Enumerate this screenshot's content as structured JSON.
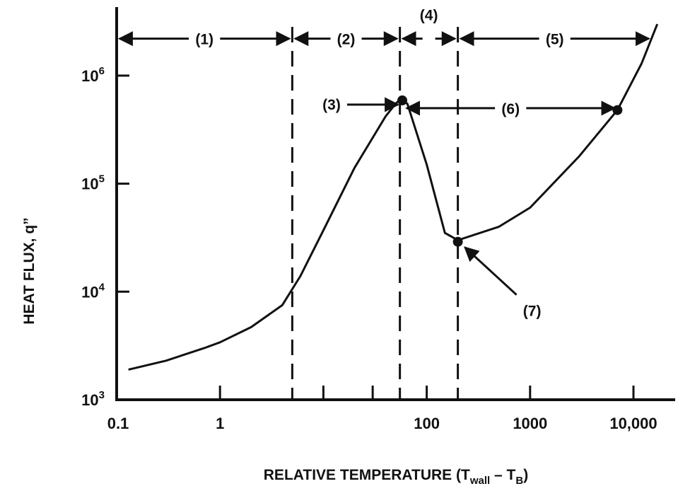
{
  "chart_data": {
    "type": "line",
    "title": "",
    "xlabel": "RELATIVE TEMPERATURE (T",
    "xlabel_sub1": "wall",
    "xlabel_mid": " – T",
    "xlabel_sub2": "B",
    "xlabel_end": ")",
    "ylabel": "HEAT FLUX, q”",
    "xscale": "log",
    "yscale": "log",
    "xlim": [
      0.1,
      20000
    ],
    "ylim": [
      1000,
      4000000
    ],
    "x_tick_labels": [
      {
        "value": 0.1,
        "label": "0.1"
      },
      {
        "value": 1,
        "label": "1"
      },
      {
        "value": 100,
        "label": "100"
      },
      {
        "value": 1000,
        "label": "1000"
      },
      {
        "value": 10000,
        "label": "10,000"
      }
    ],
    "x_minor_ticks": [
      10,
      30
    ],
    "y_tick_labels": [
      {
        "value": 1000,
        "base": "10",
        "exp": "3"
      },
      {
        "value": 10000,
        "base": "10",
        "exp": "4"
      },
      {
        "value": 100000,
        "base": "10",
        "exp": "5"
      },
      {
        "value": 1000000,
        "base": "10",
        "exp": "6"
      }
    ],
    "series": [
      {
        "name": "",
        "points": [
          [
            0.13,
            1900
          ],
          [
            0.3,
            2300
          ],
          [
            0.7,
            3000
          ],
          [
            1,
            3400
          ],
          [
            2,
            4700
          ],
          [
            4,
            7500
          ],
          [
            6,
            14000
          ],
          [
            10,
            37000
          ],
          [
            20,
            140000
          ],
          [
            40,
            420000
          ],
          [
            50,
            550000
          ],
          [
            55,
            600000
          ],
          [
            65,
            550000
          ],
          [
            100,
            150000
          ],
          [
            150,
            35000
          ],
          [
            200,
            30000
          ],
          [
            500,
            40000
          ],
          [
            1000,
            60000
          ],
          [
            3000,
            180000
          ],
          [
            7000,
            480000
          ],
          [
            12000,
            1300000
          ],
          [
            17000,
            3000000
          ]
        ]
      }
    ],
    "markers": [
      {
        "x": 58,
        "y": 590000
      },
      {
        "x": 200,
        "y": 29000
      },
      {
        "x": 7000,
        "y": 480000
      }
    ],
    "region_boundaries": [
      5,
      55,
      200
    ],
    "regions": [
      {
        "label": "(1)",
        "x_from": 0.1,
        "x_to": 5,
        "y": 2200000
      },
      {
        "label": "(2)",
        "x_from": 5,
        "x_to": 55,
        "y": 2200000
      },
      {
        "label": "(4)",
        "x_from": 55,
        "x_to": 200,
        "y": 2200000
      },
      {
        "label": "(5)",
        "x_from": 200,
        "x_to": 15000,
        "y": 2200000
      },
      {
        "label": "(6)",
        "x_from": 60,
        "x_to": 7000,
        "y": 500000
      }
    ],
    "annotations": [
      {
        "label": "(3)",
        "points_to_x": 58,
        "points_to_y": 590000
      },
      {
        "label": "(7)",
        "points_to_x": 200,
        "points_to_y": 29000
      }
    ]
  }
}
